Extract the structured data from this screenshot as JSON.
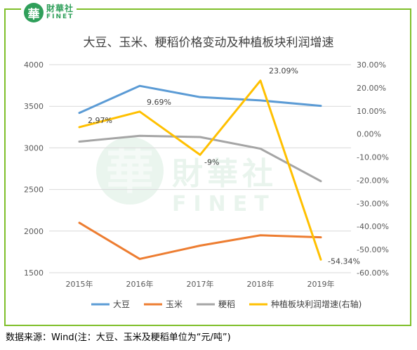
{
  "brand": {
    "badge": "華",
    "name_cn": "財華社",
    "name_en": "FINET"
  },
  "watermark": {
    "badge": "華",
    "name_cn": "財華社",
    "name_en": "FINET"
  },
  "source_note": "数据来源：Wind(注：大豆、玉米及粳稻单位为“元/吨”)",
  "chart_data": {
    "type": "line",
    "title": "大豆、玉米、粳稻价格变动及种植板块利润增速",
    "categories": [
      "2015年",
      "2016年",
      "2017年",
      "2018年",
      "2019年"
    ],
    "left_axis": {
      "min": 1500,
      "max": 4000,
      "ticks": [
        "1500",
        "2000",
        "2500",
        "3000",
        "3500",
        "4000"
      ]
    },
    "right_axis": {
      "min": -60,
      "max": 30,
      "ticks": [
        "-60.00%",
        "-50.00%",
        "-40.00%",
        "-30.00%",
        "-20.00%",
        "-10.00%",
        "0.00%",
        "10.00%",
        "20.00%",
        "30.00%"
      ]
    },
    "grid": true,
    "legend_position": "bottom",
    "series": [
      {
        "name": "大豆",
        "axis": "left",
        "color": "#5b9bd5",
        "values": [
          3420,
          3745,
          3610,
          3570,
          3505
        ]
      },
      {
        "name": "玉米",
        "axis": "left",
        "color": "#ed7d31",
        "values": [
          2100,
          1665,
          1825,
          1950,
          1925
        ]
      },
      {
        "name": "粳稻",
        "axis": "left",
        "color": "#a5a5a5",
        "values": [
          3075,
          3145,
          3130,
          2990,
          2600
        ]
      },
      {
        "name": "种植板块利润增速(右轴)",
        "axis": "right",
        "color": "#ffc000",
        "values": [
          2.97,
          9.69,
          -9,
          23.09,
          -54.34
        ],
        "labels": [
          "2.97%",
          "9.69%",
          "-9%",
          "23.09%",
          "-54.34%"
        ]
      }
    ]
  }
}
